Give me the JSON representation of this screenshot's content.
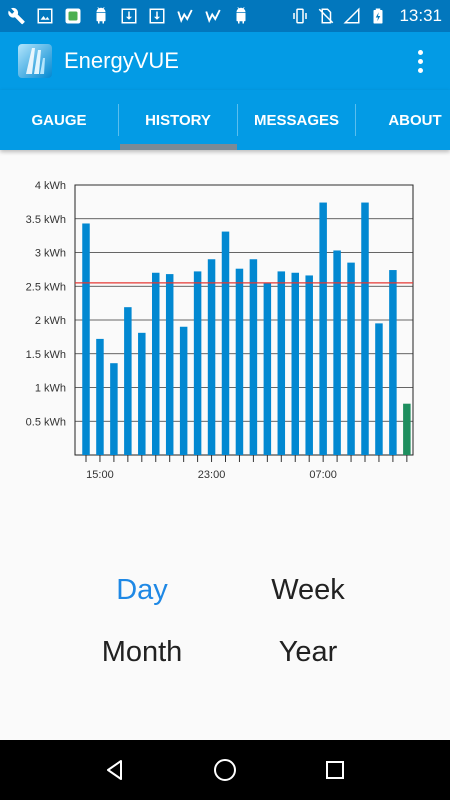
{
  "status_bar": {
    "time": "13:31",
    "left_icons": [
      "wrench-icon",
      "image-icon",
      "android-notify-icon",
      "android-robot-icon",
      "download-icon",
      "download-icon",
      "check-badge-icon",
      "check-badge-icon",
      "android-robot-icon"
    ],
    "right_icons": [
      "vibrate-icon",
      "no-sim-icon",
      "no-signal-icon",
      "battery-charging-icon"
    ]
  },
  "app_bar": {
    "title": "EnergyVUE",
    "menu_icon": "overflow-menu-icon"
  },
  "tabs": [
    {
      "label": "GAUGE"
    },
    {
      "label": "HISTORY",
      "selected": true
    },
    {
      "label": "MESSAGES"
    },
    {
      "label": "ABOUT"
    }
  ],
  "chart_data": {
    "type": "bar",
    "title": "",
    "xlabel": "",
    "ylabel": "",
    "ylim": [
      0,
      4
    ],
    "y_ticks": [
      {
        "value": 0.5,
        "label": "0.5 kWh"
      },
      {
        "value": 1,
        "label": "1 kWh"
      },
      {
        "value": 1.5,
        "label": "1.5 kWh"
      },
      {
        "value": 2,
        "label": "2 kWh"
      },
      {
        "value": 2.5,
        "label": "2.5 kWh"
      },
      {
        "value": 3,
        "label": "3 kWh"
      },
      {
        "value": 3.5,
        "label": "3.5 kWh"
      },
      {
        "value": 4,
        "label": "4 kWh"
      }
    ],
    "x_tick_labels": [
      {
        "index": 1,
        "label": "15:00"
      },
      {
        "index": 9,
        "label": "23:00"
      },
      {
        "index": 17,
        "label": "07:00"
      }
    ],
    "reference_line": {
      "value": 2.55,
      "color": "#e53935"
    },
    "grid": true,
    "bar_color": "#0288d1",
    "current_bar_color": "#1e8e5e",
    "values": [
      3.43,
      1.72,
      1.36,
      2.19,
      1.81,
      2.7,
      2.68,
      1.9,
      2.72,
      2.9,
      3.31,
      2.76,
      2.9,
      2.55,
      2.72,
      2.7,
      2.66,
      3.74,
      3.03,
      2.85,
      3.74,
      1.95,
      2.74,
      0.76
    ]
  },
  "period_selector": {
    "day": "Day",
    "week": "Week",
    "month": "Month",
    "year": "Year",
    "selected": "day",
    "accent_color": "#1e88e5"
  },
  "nav_bar": {
    "icons": [
      "back-triangle-icon",
      "home-circle-icon",
      "recents-square-icon"
    ]
  }
}
